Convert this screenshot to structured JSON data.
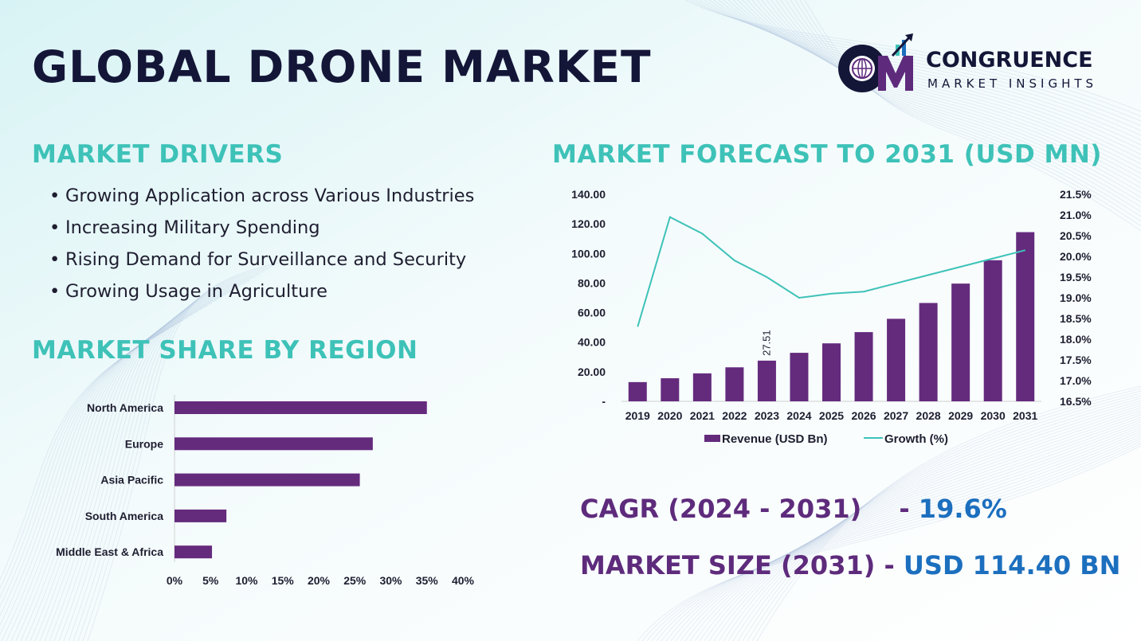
{
  "title": "GLOBAL DRONE MARKET",
  "logo": {
    "name": "CONGRUENCE",
    "sub": "MARKET INSIGHTS",
    "mark": "CM"
  },
  "drivers": {
    "title": "MARKET DRIVERS",
    "items": [
      "Growing Application across Various Industries",
      "Increasing Military Spending",
      "Rising Demand for Surveillance and Security",
      "Growing Usage in Agriculture"
    ]
  },
  "region": {
    "title": "MARKET SHARE BY REGION"
  },
  "forecast": {
    "title": "MARKET FORECAST TO 2031 (USD MN)"
  },
  "stats": {
    "cagr_label": "CAGR (2024 - 2031)",
    "cagr_sep": "-",
    "cagr_value": "19.6%",
    "size_label": "MARKET SIZE (2031)",
    "size_sep": "-",
    "size_value": "USD 114.40 BN"
  },
  "colors": {
    "bar": "#642b7d",
    "line": "#3ec2b8",
    "title": "#3ec2b8",
    "heading": "#141638",
    "cagr": "#5e2b7c",
    "value": "#1c6fbe"
  },
  "chart_data": [
    {
      "type": "bar",
      "orientation": "horizontal",
      "categories": [
        "North America",
        "Europe",
        "Asia Pacific",
        "South America",
        "Middle East & Africa"
      ],
      "values": [
        35,
        27.5,
        25.7,
        7.2,
        5.2
      ],
      "xlim": [
        0,
        40
      ],
      "xticks": [
        "0%",
        "5%",
        "10%",
        "15%",
        "20%",
        "25%",
        "30%",
        "35%",
        "40%"
      ],
      "legend": "none"
    },
    {
      "type": "bar+line",
      "categories": [
        "2019",
        "2020",
        "2021",
        "2022",
        "2023",
        "2024",
        "2025",
        "2026",
        "2027",
        "2028",
        "2029",
        "2030",
        "2031"
      ],
      "series": [
        {
          "name": "Revenue (USD Bn)",
          "type": "bar",
          "axis": "left",
          "values": [
            13.0,
            15.6,
            18.9,
            23.0,
            27.51,
            32.8,
            39.2,
            46.8,
            55.8,
            66.5,
            79.6,
            95.4,
            114.4
          ]
        },
        {
          "name": "Growth (%)",
          "type": "line",
          "axis": "right",
          "values": [
            18.3,
            20.95,
            20.55,
            19.9,
            19.5,
            19.0,
            19.1,
            19.15,
            19.35,
            19.55,
            19.75,
            19.95,
            20.15
          ]
        }
      ],
      "data_labels": [
        {
          "index": 4,
          "text": "27.51"
        }
      ],
      "ylim_left": [
        0,
        140
      ],
      "yticks_left": [
        "-",
        "20.00",
        "40.00",
        "60.00",
        "80.00",
        "100.00",
        "120.00",
        "140.00"
      ],
      "ylim_right": [
        16.5,
        21.5
      ],
      "yticks_right": [
        "16.5%",
        "17.0%",
        "17.5%",
        "18.0%",
        "18.5%",
        "19.0%",
        "19.5%",
        "20.0%",
        "20.5%",
        "21.0%",
        "21.5%"
      ],
      "legend": "bottom",
      "grid": false
    }
  ]
}
